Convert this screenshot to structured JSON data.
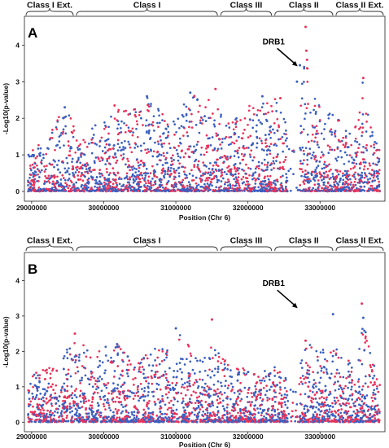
{
  "chart_data": [
    {
      "type": "scatter",
      "panel": "A",
      "title": "",
      "xlabel": "Position (Chr 6)",
      "ylabel": "-Log10(p-value)",
      "xlim": [
        28900000,
        33900000
      ],
      "ylim": [
        -0.2,
        4.7
      ],
      "x_ticks": [
        29000000,
        30000000,
        31000000,
        32000000,
        33000000
      ],
      "y_ticks": [
        0,
        1,
        2,
        3,
        4
      ],
      "grid": false,
      "series_colors": {
        "red": "#e8325a",
        "blue": "#3a5fbf"
      },
      "regions": [
        {
          "label": "Class I Ext.",
          "start": 28900000,
          "end": 29600000
        },
        {
          "label": "Class I",
          "start": 29600000,
          "end": 31600000
        },
        {
          "label": "Class III",
          "start": 31600000,
          "end": 32350000
        },
        {
          "label": "Class II",
          "start": 32350000,
          "end": 33200000
        },
        {
          "label": "Class II Ext.",
          "start": 33200000,
          "end": 33900000
        }
      ],
      "annotation": {
        "label": "DRB1",
        "x": 32700000,
        "y": 3.4
      },
      "profile": [
        {
          "x": 29000000,
          "max": 1.2
        },
        {
          "x": 29200000,
          "max": 1.4
        },
        {
          "x": 29450000,
          "max": 2.3
        },
        {
          "x": 29700000,
          "max": 1.5
        },
        {
          "x": 29850000,
          "max": 1.8
        },
        {
          "x": 30150000,
          "max": 2.3
        },
        {
          "x": 30400000,
          "max": 2.2
        },
        {
          "x": 30600000,
          "max": 2.6
        },
        {
          "x": 30900000,
          "max": 2.0
        },
        {
          "x": 31000000,
          "max": 2.1
        },
        {
          "x": 31200000,
          "max": 2.7
        },
        {
          "x": 31500000,
          "max": 2.7
        },
        {
          "x": 31700000,
          "max": 1.8
        },
        {
          "x": 31950000,
          "max": 2.3
        },
        {
          "x": 32150000,
          "max": 2.6
        },
        {
          "x": 32450000,
          "max": 2.5
        },
        {
          "x": 32650000,
          "max": 1.0
        },
        {
          "x": 32780000,
          "max": 3.6
        },
        {
          "x": 32820000,
          "max": 3.8
        },
        {
          "x": 32870000,
          "max": 3.1
        },
        {
          "x": 33050000,
          "max": 2.2
        },
        {
          "x": 33200000,
          "max": 2.1
        },
        {
          "x": 33450000,
          "max": 1.5
        },
        {
          "x": 33580000,
          "max": 3.1
        },
        {
          "x": 33800000,
          "max": 1.2
        }
      ],
      "highlights": [
        {
          "x": 32800000,
          "y": 4.5,
          "color": "#e8325a"
        },
        {
          "x": 32810000,
          "y": 3.85,
          "color": "#e8325a"
        },
        {
          "x": 32820000,
          "y": 3.6,
          "color": "#e8325a"
        },
        {
          "x": 32720000,
          "y": 3.45,
          "color": "#3a5fbf"
        },
        {
          "x": 32680000,
          "y": 3.0,
          "color": "#3a5fbf"
        },
        {
          "x": 33600000,
          "y": 3.1,
          "color": "#e8325a"
        },
        {
          "x": 32450000,
          "y": 2.55,
          "color": "#e8325a"
        },
        {
          "x": 32200000,
          "y": 2.6,
          "color": "#3a5fbf"
        },
        {
          "x": 31200000,
          "y": 2.7,
          "color": "#3a5fbf"
        },
        {
          "x": 31550000,
          "y": 2.8,
          "color": "#e8325a"
        },
        {
          "x": 30600000,
          "y": 2.6,
          "color": "#3a5fbf"
        },
        {
          "x": 30150000,
          "y": 2.35,
          "color": "#e8325a"
        },
        {
          "x": 29460000,
          "y": 2.3,
          "color": "#3a5fbf"
        }
      ]
    },
    {
      "type": "scatter",
      "panel": "B",
      "title": "",
      "xlabel": "Position (Chr 6)",
      "ylabel": "-Log10(p-value)",
      "xlim": [
        28900000,
        33900000
      ],
      "ylim": [
        -0.2,
        4.7
      ],
      "x_ticks": [
        29000000,
        30000000,
        31000000,
        32000000,
        33000000
      ],
      "y_ticks": [
        0,
        1,
        2,
        3,
        4
      ],
      "grid": false,
      "series_colors": {
        "red": "#e8325a",
        "blue": "#3a5fbf"
      },
      "regions": [
        {
          "label": "Class I Ext.",
          "start": 28900000,
          "end": 29600000
        },
        {
          "label": "Class I",
          "start": 29600000,
          "end": 31600000
        },
        {
          "label": "Class III",
          "start": 31600000,
          "end": 32350000
        },
        {
          "label": "Class II",
          "start": 32350000,
          "end": 33200000
        },
        {
          "label": "Class II Ext.",
          "start": 33200000,
          "end": 33900000
        }
      ],
      "annotation": {
        "label": "DRB1",
        "x": 32700000,
        "y": 3.2
      },
      "profile": [
        {
          "x": 29000000,
          "max": 1.3
        },
        {
          "x": 29200000,
          "max": 1.6
        },
        {
          "x": 29450000,
          "max": 1.9
        },
        {
          "x": 29600000,
          "max": 2.5
        },
        {
          "x": 29850000,
          "max": 1.9
        },
        {
          "x": 30150000,
          "max": 2.3
        },
        {
          "x": 30400000,
          "max": 1.8
        },
        {
          "x": 30600000,
          "max": 2.0
        },
        {
          "x": 30900000,
          "max": 2.2
        },
        {
          "x": 31050000,
          "max": 2.6
        },
        {
          "x": 31300000,
          "max": 1.8
        },
        {
          "x": 31500000,
          "max": 2.2
        },
        {
          "x": 31700000,
          "max": 1.7
        },
        {
          "x": 31950000,
          "max": 1.6
        },
        {
          "x": 32150000,
          "max": 1.4
        },
        {
          "x": 32400000,
          "max": 1.6
        },
        {
          "x": 32650000,
          "max": 0.9
        },
        {
          "x": 32800000,
          "max": 2.3
        },
        {
          "x": 32900000,
          "max": 2.1
        },
        {
          "x": 33150000,
          "max": 2.0
        },
        {
          "x": 33300000,
          "max": 2.1
        },
        {
          "x": 33500000,
          "max": 1.5
        },
        {
          "x": 33600000,
          "max": 2.8
        },
        {
          "x": 33800000,
          "max": 1.2
        }
      ],
      "highlights": [
        {
          "x": 33580000,
          "y": 3.35,
          "color": "#e8325a"
        },
        {
          "x": 33180000,
          "y": 3.05,
          "color": "#3a5fbf"
        },
        {
          "x": 33600000,
          "y": 2.95,
          "color": "#3a5fbf"
        },
        {
          "x": 31500000,
          "y": 2.9,
          "color": "#e8325a"
        },
        {
          "x": 31000000,
          "y": 2.65,
          "color": "#3a5fbf"
        },
        {
          "x": 29600000,
          "y": 2.5,
          "color": "#e8325a"
        },
        {
          "x": 32800000,
          "y": 2.3,
          "color": "#e8325a"
        }
      ]
    }
  ]
}
